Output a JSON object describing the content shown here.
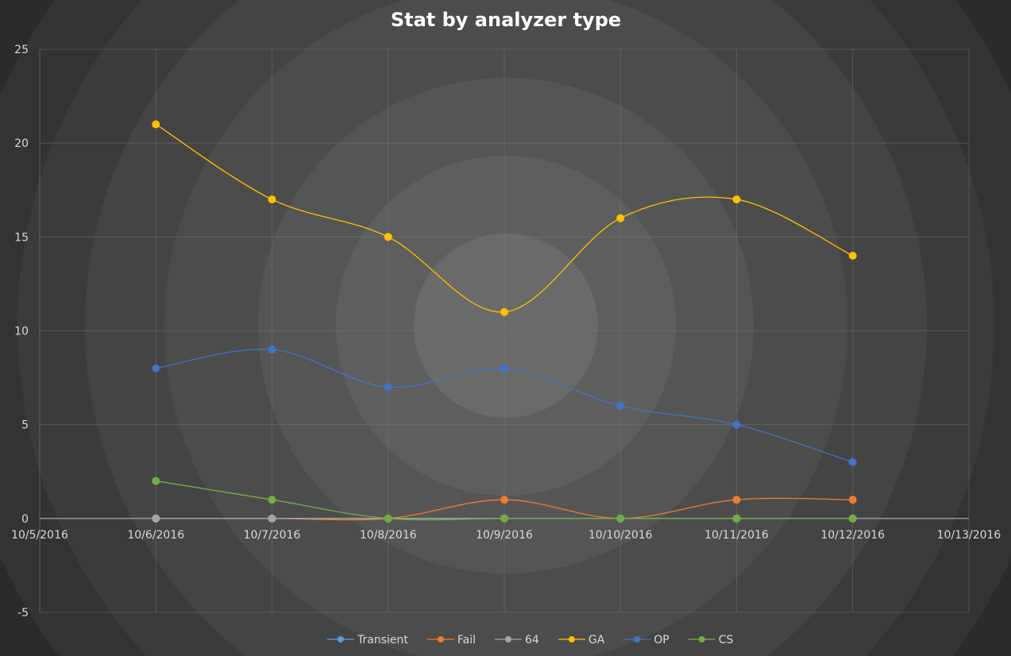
{
  "chart_data": {
    "type": "line",
    "title": "Stat by analyzer type",
    "xlabel": "",
    "ylabel": "",
    "x_ticks": [
      "10/5/2016",
      "10/6/2016",
      "10/7/2016",
      "10/8/2016",
      "10/9/2016",
      "10/10/2016",
      "10/11/2016",
      "10/12/2016",
      "10/13/2016"
    ],
    "x": [
      "10/6/2016",
      "10/7/2016",
      "10/8/2016",
      "10/9/2016",
      "10/10/2016",
      "10/11/2016",
      "10/12/2016"
    ],
    "xlim": [
      "10/5/2016",
      "10/13/2016"
    ],
    "y_ticks": [
      "25",
      "20",
      "15",
      "10",
      "5",
      "0",
      "-5"
    ],
    "ylim": [
      -5,
      25
    ],
    "grid": true,
    "smooth": true,
    "legend_position": "bottom",
    "series": [
      {
        "name": "Transient",
        "color": "#5b9bd5",
        "values": [
          0,
          0,
          0,
          0,
          0,
          0,
          0
        ]
      },
      {
        "name": "Fail",
        "color": "#ed7d31",
        "values": [
          0,
          0,
          0,
          1,
          0,
          1,
          1
        ]
      },
      {
        "name": "64",
        "color": "#a5a5a5",
        "values": [
          0,
          0,
          0,
          0,
          0,
          0,
          0
        ]
      },
      {
        "name": "GA",
        "color": "#ffc000",
        "values": [
          21,
          17,
          15,
          11,
          16,
          17,
          14
        ]
      },
      {
        "name": "OP",
        "color": "#4472c4",
        "values": [
          8,
          9,
          7,
          8,
          6,
          5,
          3
        ]
      },
      {
        "name": "CS",
        "color": "#70ad47",
        "values": [
          2,
          1,
          0,
          0,
          0,
          0,
          0
        ]
      }
    ]
  }
}
